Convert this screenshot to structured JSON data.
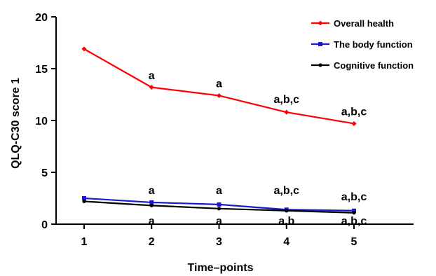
{
  "chart_data": {
    "type": "line",
    "x": [
      1,
      2,
      3,
      4,
      5
    ],
    "xticks": [
      "1",
      "2",
      "3",
      "4",
      "5"
    ],
    "yticks": [
      "0",
      "5",
      "10",
      "15",
      "20"
    ],
    "ylim": [
      0,
      20
    ],
    "xlabel": "Time–points",
    "ylabel": "QLQ-C30 score 1",
    "legend_position": "top-right",
    "grid": false,
    "series": [
      {
        "name": "Overall health",
        "color": "#ff0000",
        "marker": "diamond",
        "values": [
          16.9,
          13.2,
          12.4,
          10.8,
          9.7
        ]
      },
      {
        "name": "The body function",
        "color": "#1a1acc",
        "marker": "square",
        "values": [
          2.5,
          2.1,
          1.9,
          1.4,
          1.3
        ]
      },
      {
        "name": "Cognitive function",
        "color": "#000000",
        "marker": "circle",
        "values": [
          2.2,
          1.8,
          1.5,
          1.3,
          1.1
        ]
      }
    ],
    "annotations": [
      {
        "x": 2,
        "y": 14.0,
        "text": "a"
      },
      {
        "x": 3,
        "y": 13.2,
        "text": "a"
      },
      {
        "x": 4,
        "y": 11.7,
        "text": "a,b,c"
      },
      {
        "x": 5,
        "y": 10.5,
        "text": "a,b,c"
      },
      {
        "x": 2,
        "y": 2.9,
        "text": "a"
      },
      {
        "x": 3,
        "y": 2.9,
        "text": "a"
      },
      {
        "x": 4,
        "y": 2.9,
        "text": "a,b,c"
      },
      {
        "x": 5,
        "y": 2.3,
        "text": "a,b,c"
      },
      {
        "x": 2,
        "y": -0.05,
        "text": "a"
      },
      {
        "x": 3,
        "y": -0.05,
        "text": "a"
      },
      {
        "x": 4,
        "y": -0.05,
        "text": "a,b"
      },
      {
        "x": 5,
        "y": -0.05,
        "text": "a,b,c"
      }
    ]
  }
}
